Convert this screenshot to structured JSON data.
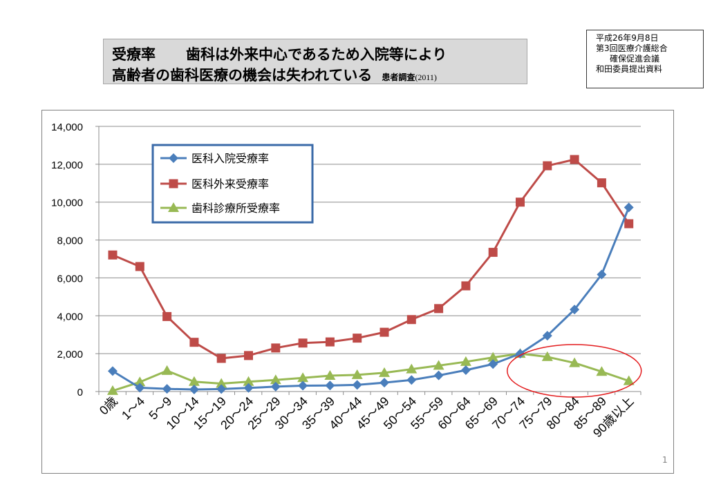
{
  "header": {
    "title_label": "受療率",
    "title_main": "歯科は外来中心であるため入院等により",
    "title_sub": "高齢者の歯科医療の機会は失われている",
    "source": "患者調査",
    "source_year": "(2011)"
  },
  "note": {
    "lines": [
      "平成26年9月8日",
      "第3回医療介護総合",
      "確保促進会議",
      "和田委員提出資料"
    ]
  },
  "page_number": "1",
  "chart_data": {
    "type": "line",
    "categories": [
      "0歳",
      "1～4",
      "5～9",
      "10～14",
      "15～19",
      "20～24",
      "25～29",
      "30～34",
      "35～39",
      "40～44",
      "45～49",
      "50～54",
      "55～59",
      "60～64",
      "65～69",
      "70～74",
      "75～79",
      "80～84",
      "85～89",
      "90歳以上"
    ],
    "ylim": [
      0,
      14000
    ],
    "yticks": [
      "0",
      "2,000",
      "4,000",
      "6,000",
      "8,000",
      "10,000",
      "12,000",
      "14,000"
    ],
    "grid": true,
    "legend_position": "top-left",
    "series": [
      {
        "name": "医科入院受療率",
        "color": "#4a7ebb",
        "marker": "diamond",
        "values": [
          1080,
          200,
          140,
          110,
          130,
          190,
          260,
          310,
          320,
          350,
          470,
          610,
          850,
          1130,
          1450,
          2000,
          2950,
          4330,
          6180,
          9720
        ]
      },
      {
        "name": "医科外来受療率",
        "color": "#be4b48",
        "marker": "square",
        "values": [
          7210,
          6600,
          3960,
          2600,
          1750,
          1900,
          2300,
          2560,
          2620,
          2820,
          3130,
          3800,
          4380,
          5580,
          7350,
          10000,
          11920,
          12250,
          11020,
          8860
        ]
      },
      {
        "name": "歯科診療所受療率",
        "color": "#98b954",
        "marker": "triangle",
        "values": [
          40,
          500,
          1100,
          520,
          420,
          520,
          610,
          720,
          840,
          880,
          990,
          1180,
          1370,
          1570,
          1800,
          2000,
          1830,
          1510,
          1050,
          560
        ]
      }
    ],
    "annotation": {
      "shape": "ellipse",
      "color": "#e31a1c",
      "highlights": [
        "75～79",
        "80～84",
        "85～89",
        "90歳以上"
      ]
    }
  }
}
